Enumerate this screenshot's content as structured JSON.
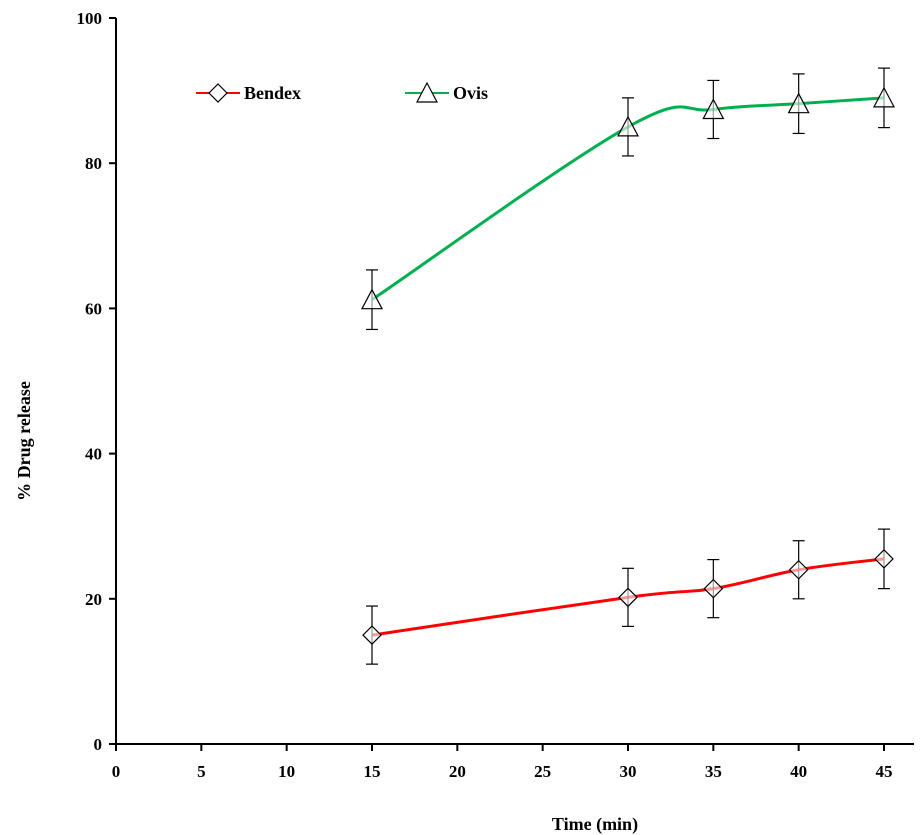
{
  "chart_data": {
    "type": "line",
    "xlabel": "Time (min)",
    "ylabel": "% Drug release",
    "xlim": [
      0,
      45
    ],
    "ylim": [
      0,
      100
    ],
    "xticks": [
      0,
      5,
      10,
      15,
      20,
      25,
      30,
      35,
      40,
      45
    ],
    "yticks": [
      0,
      20,
      40,
      60,
      80,
      100
    ],
    "grid": false,
    "legend_position": "top-left",
    "series": [
      {
        "name": "Bendex",
        "color": "#ff0000",
        "marker": "diamond",
        "x": [
          15,
          30,
          35,
          40,
          45
        ],
        "y": [
          15,
          20.2,
          21.4,
          24,
          25.5
        ],
        "error": [
          4,
          4,
          4,
          4,
          4.1
        ]
      },
      {
        "name": "Ovis",
        "color": "#00b050",
        "marker": "triangle",
        "x": [
          15,
          30,
          35,
          40,
          45
        ],
        "y": [
          61.2,
          85,
          87.4,
          88.2,
          89
        ],
        "error": [
          4.1,
          4,
          4,
          4.1,
          4.1
        ]
      }
    ]
  }
}
